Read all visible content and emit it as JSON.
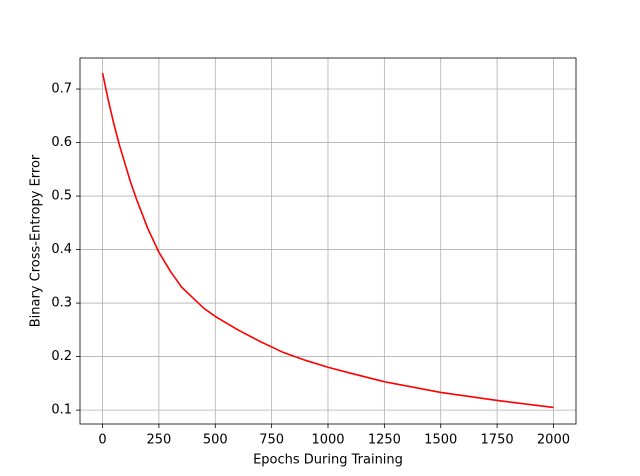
{
  "chart_data": {
    "type": "line",
    "xlabel": "Epochs During Training",
    "ylabel": "Binary Cross-Entropy Error",
    "x": [
      0,
      25,
      50,
      75,
      100,
      125,
      150,
      200,
      250,
      300,
      350,
      400,
      450,
      500,
      600,
      700,
      750,
      800,
      900,
      1000,
      1100,
      1250,
      1500,
      1750,
      2000
    ],
    "series": [
      {
        "color": "#ff0000",
        "values": [
          0.73,
          0.68,
          0.635,
          0.595,
          0.56,
          0.525,
          0.495,
          0.44,
          0.395,
          0.36,
          0.33,
          0.31,
          0.29,
          0.275,
          0.25,
          0.228,
          0.218,
          0.208,
          0.193,
          0.18,
          0.169,
          0.153,
          0.133,
          0.118,
          0.105
        ]
      }
    ],
    "xlim": [
      -100,
      2100
    ],
    "ylim": [
      0.074,
      0.758
    ],
    "xticks": [
      0,
      250,
      500,
      750,
      1000,
      1250,
      1500,
      1750,
      2000
    ],
    "yticks": [
      0.1,
      0.2,
      0.3,
      0.4,
      0.5,
      0.6,
      0.7
    ],
    "grid": true
  }
}
